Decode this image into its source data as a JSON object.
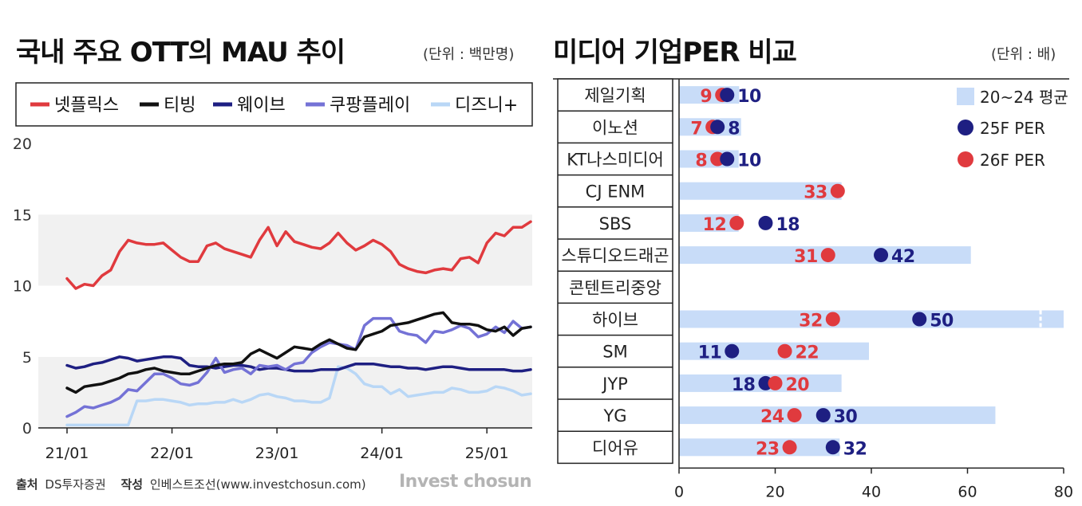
{
  "left": {
    "title": "국내 주요 OTT의 MAU 추이",
    "unit": "(단위 : 백만명)"
  },
  "right": {
    "title": "미디어 기업PER 비교",
    "unit": "(단위 : 배)"
  },
  "footer": {
    "source_label": "출처",
    "source_value": "DS투자증권",
    "author_label": "작성",
    "author_value": "인베스트조선(www.investchosun.com)",
    "brand": "Invest chosun"
  },
  "colors": {
    "netflix": "#e03a3e",
    "tving": "#111111",
    "wavve": "#1e1f82",
    "coupang": "#7472d6",
    "disney": "#b9d7f6",
    "avg_bar": "#c8dcf8",
    "per25": "#1e1f82",
    "per26": "#e03a3e"
  },
  "chart_data": [
    {
      "type": "line",
      "title": "국내 주요 OTT의 MAU 추이",
      "ylim": [
        0,
        20
      ],
      "yticks": [
        "0",
        "5",
        "10",
        "15",
        "20"
      ],
      "xticks": [
        "21/01",
        "22/01",
        "23/01",
        "24/01",
        "25/01"
      ],
      "xlim": [
        "2021-01",
        "2025-06"
      ],
      "x": [
        "2021-01",
        "2021-02",
        "2021-03",
        "2021-04",
        "2021-05",
        "2021-06",
        "2021-07",
        "2021-08",
        "2021-09",
        "2021-10",
        "2021-11",
        "2021-12",
        "2022-01",
        "2022-02",
        "2022-03",
        "2022-04",
        "2022-05",
        "2022-06",
        "2022-07",
        "2022-08",
        "2022-09",
        "2022-10",
        "2022-11",
        "2022-12",
        "2023-01",
        "2023-02",
        "2023-03",
        "2023-04",
        "2023-05",
        "2023-06",
        "2023-07",
        "2023-08",
        "2023-09",
        "2023-10",
        "2023-11",
        "2023-12",
        "2024-01",
        "2024-02",
        "2024-03",
        "2024-04",
        "2024-05",
        "2024-06",
        "2024-07",
        "2024-08",
        "2024-09",
        "2024-10",
        "2024-11",
        "2024-12",
        "2025-01",
        "2025-02",
        "2025-03",
        "2025-04",
        "2025-05",
        "2025-06"
      ],
      "series": [
        {
          "name": "넷플릭스",
          "color_key": "netflix",
          "values": [
            10.5,
            9.8,
            10.1,
            10.0,
            10.7,
            11.1,
            12.4,
            13.2,
            13.0,
            12.9,
            12.9,
            13.0,
            12.5,
            12.0,
            11.7,
            11.7,
            12.8,
            13.0,
            12.6,
            12.4,
            12.2,
            12.0,
            13.2,
            14.1,
            12.8,
            13.8,
            13.1,
            12.9,
            12.7,
            12.6,
            13.0,
            13.7,
            13.0,
            12.5,
            12.8,
            13.2,
            12.9,
            12.4,
            11.5,
            11.2,
            11.0,
            10.9,
            11.1,
            11.2,
            11.1,
            11.9,
            12.0,
            11.6,
            13.0,
            13.7,
            13.5,
            14.1,
            14.1,
            14.5
          ]
        },
        {
          "name": "티빙",
          "color_key": "tving",
          "values": [
            2.8,
            2.5,
            2.9,
            3.0,
            3.1,
            3.3,
            3.5,
            3.8,
            3.9,
            4.1,
            4.2,
            4.0,
            3.9,
            3.8,
            3.8,
            4.0,
            4.2,
            4.4,
            4.5,
            4.5,
            4.6,
            5.2,
            5.5,
            5.2,
            4.9,
            5.3,
            5.7,
            5.6,
            5.5,
            5.9,
            6.2,
            5.9,
            5.6,
            5.5,
            6.4,
            6.6,
            6.8,
            7.2,
            7.3,
            7.4,
            7.6,
            7.8,
            8.0,
            8.1,
            7.4,
            7.3,
            7.3,
            7.2,
            6.9,
            6.8,
            7.1,
            6.5,
            7.0,
            7.1
          ]
        },
        {
          "name": "웨이브",
          "color_key": "wavve",
          "values": [
            4.4,
            4.2,
            4.3,
            4.5,
            4.6,
            4.8,
            5.0,
            4.9,
            4.7,
            4.8,
            4.9,
            5.0,
            5.0,
            4.9,
            4.4,
            4.3,
            4.3,
            4.2,
            4.3,
            4.4,
            4.4,
            4.3,
            4.1,
            4.2,
            4.2,
            4.1,
            4.0,
            4.0,
            4.0,
            4.1,
            4.1,
            4.1,
            4.3,
            4.5,
            4.5,
            4.5,
            4.4,
            4.3,
            4.3,
            4.2,
            4.2,
            4.1,
            4.2,
            4.3,
            4.3,
            4.2,
            4.1,
            4.1,
            4.1,
            4.1,
            4.1,
            4.0,
            4.0,
            4.1
          ]
        },
        {
          "name": "쿠팡플레이",
          "color_key": "coupang",
          "values": [
            0.8,
            1.1,
            1.5,
            1.4,
            1.6,
            1.8,
            2.1,
            2.7,
            2.6,
            3.2,
            3.8,
            3.8,
            3.5,
            3.1,
            3.0,
            3.2,
            3.9,
            4.9,
            3.9,
            4.1,
            4.2,
            3.8,
            4.4,
            4.3,
            4.4,
            4.1,
            4.5,
            4.6,
            5.3,
            5.7,
            6.0,
            5.9,
            5.8,
            5.5,
            7.2,
            7.7,
            7.7,
            7.7,
            6.8,
            6.6,
            6.5,
            6.0,
            6.8,
            6.7,
            6.9,
            7.2,
            7.0,
            6.4,
            6.6,
            7.1,
            6.7,
            7.5,
            7.0,
            7.1
          ]
        },
        {
          "name": "디즈니+",
          "color_key": "disney",
          "values": [
            0.2,
            0.2,
            0.2,
            0.2,
            0.2,
            0.2,
            0.2,
            0.2,
            1.9,
            1.9,
            2.0,
            2.0,
            1.9,
            1.8,
            1.6,
            1.7,
            1.7,
            1.8,
            1.8,
            2.0,
            1.8,
            2.0,
            2.3,
            2.4,
            2.2,
            2.1,
            1.9,
            1.9,
            1.8,
            1.8,
            2.1,
            4.3,
            4.2,
            3.8,
            3.1,
            2.9,
            2.9,
            2.4,
            2.7,
            2.2,
            2.3,
            2.4,
            2.5,
            2.5,
            2.8,
            2.7,
            2.5,
            2.5,
            2.6,
            2.9,
            2.8,
            2.6,
            2.3,
            2.4
          ]
        }
      ]
    },
    {
      "type": "bar",
      "title": "미디어 기업PER 비교",
      "xlim": [
        0,
        80
      ],
      "xticks": [
        "0",
        "20",
        "40",
        "60",
        "80"
      ],
      "legend": [
        "20~24 평균",
        "25F PER",
        "26F PER"
      ],
      "categories": [
        "제일기획",
        "이노션",
        "KT나스미디어",
        "CJ ENM",
        "SBS",
        "스튜디오드래곤",
        "콘텐트리중앙",
        "하이브",
        "SM",
        "JYP",
        "YG",
        "디어유"
      ],
      "avg": [
        12.5,
        12.9,
        12.4,
        33.8,
        12.4,
        60.7,
        null,
        80,
        39.5,
        33.8,
        65.8,
        33.4
      ],
      "avg_broken": [
        false,
        false,
        false,
        false,
        false,
        false,
        false,
        true,
        false,
        false,
        false,
        false
      ],
      "per25": [
        10,
        8,
        10,
        null,
        18,
        42,
        null,
        50,
        11,
        18,
        30,
        32
      ],
      "per25_labels": [
        "10",
        "8",
        "10",
        "",
        "18",
        "42",
        "",
        "50",
        "11",
        "18",
        "30",
        "32"
      ],
      "per26": [
        9,
        7,
        8,
        33,
        12,
        31,
        null,
        32,
        22,
        20,
        24,
        23
      ],
      "per26_labels": [
        "9",
        "7",
        "8",
        "33",
        "12",
        "31",
        "",
        "32",
        "22",
        "20",
        "24",
        "23"
      ]
    }
  ]
}
